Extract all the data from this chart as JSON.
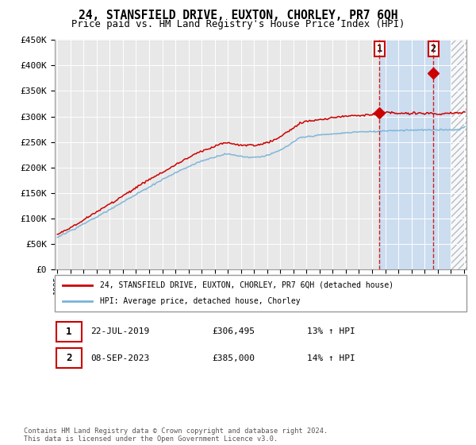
{
  "title": "24, STANSFIELD DRIVE, EUXTON, CHORLEY, PR7 6QH",
  "subtitle": "Price paid vs. HM Land Registry's House Price Index (HPI)",
  "ylim": [
    0,
    450000
  ],
  "yticks": [
    0,
    50000,
    100000,
    150000,
    200000,
    250000,
    300000,
    350000,
    400000,
    450000
  ],
  "ytick_labels": [
    "£0",
    "£50K",
    "£100K",
    "£150K",
    "£200K",
    "£250K",
    "£300K",
    "£350K",
    "£400K",
    "£450K"
  ],
  "hpi_color": "#7ab4d8",
  "property_color": "#cc0000",
  "background_color": "#ffffff",
  "plot_bg_color": "#e8e8e8",
  "highlight_bg_color": "#ccddf0",
  "sale1_date_num": 2019.55,
  "sale1_date_label": "22-JUL-2019",
  "sale1_price": 306495,
  "sale1_pct": "13%",
  "sale2_date_num": 2023.68,
  "sale2_date_label": "08-SEP-2023",
  "sale2_price": 385000,
  "sale2_pct": "14%",
  "legend_property": "24, STANSFIELD DRIVE, EUXTON, CHORLEY, PR7 6QH (detached house)",
  "legend_hpi": "HPI: Average price, detached house, Chorley",
  "footnote": "Contains HM Land Registry data © Crown copyright and database right 2024.\nThis data is licensed under the Open Government Licence v3.0.",
  "xmin": 1995,
  "xmax": 2026
}
